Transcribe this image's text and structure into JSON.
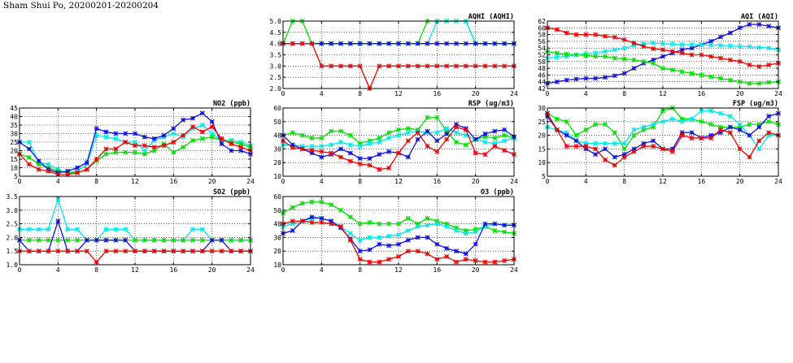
{
  "page": {
    "title": "Sham Shui Po, 20200201-20200204"
  },
  "colors": {
    "red": "#ee0000",
    "blue": "#1010dd",
    "green": "#00e000",
    "cyan": "#00e8e8",
    "axis": "#000000",
    "grid": "#000000"
  },
  "chart_data": [
    {
      "id": "aqhi",
      "type": "line",
      "title": "AQHI (AQHI)",
      "x_ticks": [
        "0",
        "4",
        "8",
        "12",
        "16",
        "20",
        "24"
      ],
      "xlim": [
        0,
        24
      ],
      "ylim": [
        2.0,
        5.0
      ],
      "y_ticks": [
        "2.0",
        "2.5",
        "3.0",
        "3.5",
        "4.0",
        "4.5",
        "5.0"
      ],
      "grid": true,
      "series": [
        {
          "color": "green",
          "values": [
            4,
            5,
            5,
            4,
            4,
            4,
            4,
            4,
            4,
            4,
            4,
            4,
            4,
            4,
            4,
            5,
            5,
            5,
            5,
            5,
            4,
            4,
            4,
            4,
            4
          ]
        },
        {
          "color": "cyan",
          "values": [
            4,
            4,
            4,
            4,
            4,
            4,
            4,
            4,
            4,
            4,
            4,
            4,
            4,
            4,
            4,
            4,
            5,
            5,
            5,
            5,
            4,
            4,
            4,
            4,
            4
          ]
        },
        {
          "color": "blue",
          "values": [
            4,
            4,
            4,
            4,
            4,
            4,
            4,
            4,
            4,
            4,
            4,
            4,
            4,
            4,
            4,
            4,
            4,
            4,
            4,
            4,
            4,
            4,
            4,
            4,
            4
          ]
        },
        {
          "color": "red",
          "values": [
            4,
            4,
            4,
            4,
            3,
            3,
            3,
            3,
            3,
            2,
            3,
            3,
            3,
            3,
            3,
            3,
            3,
            3,
            3,
            3,
            3,
            3,
            3,
            3,
            3
          ]
        }
      ]
    },
    {
      "id": "aqi",
      "type": "line",
      "title": "AQI (AQI)",
      "x_ticks": [
        "0",
        "4",
        "8",
        "12",
        "16",
        "20",
        "24"
      ],
      "xlim": [
        0,
        24
      ],
      "ylim": [
        42,
        62
      ],
      "y_ticks": [
        "42",
        "44",
        "46",
        "48",
        "50",
        "52",
        "54",
        "56",
        "58",
        "60",
        "62"
      ],
      "grid": true,
      "series": [
        {
          "color": "blue",
          "values": [
            43.5,
            44,
            44.5,
            44.8,
            45,
            45,
            45.3,
            45.8,
            46.5,
            48,
            49.5,
            50.5,
            51.5,
            52.5,
            53.5,
            54,
            55,
            56,
            57.3,
            58.5,
            60,
            61,
            61,
            60.5,
            60
          ]
        },
        {
          "color": "cyan",
          "values": [
            51,
            51.3,
            51.5,
            52,
            52.3,
            52.6,
            53,
            53.5,
            54,
            54.8,
            55.3,
            55.5,
            55.3,
            55.2,
            55,
            55,
            55,
            54.9,
            54.8,
            54.7,
            54.5,
            54.4,
            54.2,
            54,
            53.5
          ]
        },
        {
          "color": "red",
          "values": [
            60,
            59.5,
            58.5,
            58,
            58,
            58,
            57.5,
            57.2,
            56.5,
            55.5,
            54.5,
            53.8,
            53.5,
            53,
            52.5,
            52,
            52,
            51.5,
            51,
            50.5,
            50,
            49,
            48.5,
            49,
            49.5
          ]
        },
        {
          "color": "green",
          "values": [
            53,
            52.5,
            52.2,
            52,
            51.8,
            51.5,
            51.5,
            51,
            50.8,
            50.5,
            50,
            49.5,
            48,
            47.5,
            47,
            46.5,
            46,
            45.5,
            45,
            44.5,
            44,
            43.5,
            43.5,
            43.8,
            44
          ]
        }
      ]
    },
    {
      "id": "no2",
      "type": "line",
      "title": "NO2 (ppb)",
      "x_ticks": [
        "0",
        "4",
        "8",
        "12",
        "16",
        "20",
        "24"
      ],
      "xlim": [
        0,
        24
      ],
      "ylim": [
        5,
        45
      ],
      "y_ticks": [
        "5",
        "10",
        "15",
        "20",
        "25",
        "30",
        "35",
        "40",
        "45"
      ],
      "grid": true,
      "series": [
        {
          "color": "cyan",
          "values": [
            25,
            25,
            13,
            12,
            9,
            7,
            8,
            12,
            29,
            28,
            27,
            25,
            25,
            20,
            26,
            28,
            30,
            28,
            33,
            35,
            30,
            26,
            26,
            25,
            23
          ]
        },
        {
          "color": "green",
          "values": [
            18,
            16,
            12,
            10,
            8,
            7,
            7,
            9,
            14,
            18,
            19,
            19,
            19,
            18,
            20,
            24,
            19,
            22,
            26,
            27,
            28,
            26,
            25,
            24,
            22
          ]
        },
        {
          "color": "blue",
          "values": [
            25,
            21,
            14,
            9,
            7,
            8,
            10,
            13,
            33,
            31,
            30,
            30,
            30,
            28,
            27,
            29,
            33,
            38,
            39,
            42,
            37,
            24,
            20,
            20,
            18
          ]
        },
        {
          "color": "red",
          "values": [
            18,
            12,
            9,
            8,
            6,
            6,
            7,
            9,
            15,
            21,
            21,
            25,
            23,
            23,
            22,
            23,
            25,
            29,
            34,
            31,
            34,
            27,
            24,
            22,
            20
          ]
        }
      ]
    },
    {
      "id": "rsp",
      "type": "line",
      "title": "RSP (ug/m3)",
      "x_ticks": [
        "0",
        "4",
        "8",
        "12",
        "16",
        "20",
        "24"
      ],
      "xlim": [
        0,
        24
      ],
      "ylim": [
        10,
        60
      ],
      "y_ticks": [
        "10",
        "20",
        "30",
        "40",
        "50",
        "60"
      ],
      "grid": true,
      "series": [
        {
          "color": "green",
          "values": [
            40,
            42,
            40,
            38,
            38,
            43,
            43,
            40,
            34,
            36,
            38,
            42,
            44,
            45,
            44,
            53,
            53,
            43,
            35,
            33,
            37,
            39,
            38,
            40,
            38
          ]
        },
        {
          "color": "cyan",
          "values": [
            33,
            33,
            32,
            32,
            32,
            33,
            35,
            33,
            32,
            34,
            35,
            38,
            40,
            42,
            43,
            42,
            42,
            45,
            42,
            40,
            37,
            35,
            34,
            36,
            38
          ]
        },
        {
          "color": "blue",
          "values": [
            40,
            33,
            30,
            27,
            24,
            26,
            30,
            27,
            23,
            23,
            26,
            28,
            27,
            24,
            37,
            43,
            36,
            41,
            48,
            45,
            37,
            41,
            43,
            44,
            39
          ]
        },
        {
          "color": "red",
          "values": [
            36,
            31,
            30,
            29,
            28,
            27,
            24,
            21,
            19,
            18,
            15,
            16,
            27,
            36,
            42,
            32,
            28,
            37,
            46,
            44,
            27,
            26,
            32,
            29,
            26
          ]
        }
      ]
    },
    {
      "id": "fsp",
      "type": "line",
      "title": "FSP (ug/m3)",
      "x_ticks": [
        "0",
        "4",
        "8",
        "12",
        "16",
        "20",
        "24"
      ],
      "xlim": [
        0,
        24
      ],
      "ylim": [
        5,
        30
      ],
      "y_ticks": [
        "5",
        "10",
        "15",
        "20",
        "25",
        "30"
      ],
      "grid": true,
      "series": [
        {
          "color": "green",
          "values": [
            28,
            26,
            25,
            20,
            22,
            24,
            24,
            21,
            15,
            20,
            22,
            23,
            29,
            30,
            26,
            26,
            25,
            24,
            23,
            23,
            23,
            24,
            24,
            25,
            24
          ]
        },
        {
          "color": "cyan",
          "values": [
            23,
            22,
            21,
            18,
            17,
            17,
            17,
            17,
            17,
            22,
            23,
            24,
            25,
            26,
            25,
            26,
            29,
            29,
            28,
            27,
            24,
            20,
            15,
            20,
            20
          ]
        },
        {
          "color": "blue",
          "values": [
            27,
            22,
            20,
            18,
            15,
            13,
            15,
            12,
            13,
            15,
            17,
            18,
            15,
            15,
            21,
            21,
            19,
            20,
            21,
            23,
            22,
            20,
            23,
            27,
            28
          ]
        },
        {
          "color": "red",
          "values": [
            28,
            22,
            16,
            16,
            16,
            15,
            11,
            9,
            12,
            14,
            16,
            16,
            15,
            14,
            20,
            19,
            19,
            19,
            22,
            21,
            15,
            12,
            18,
            21,
            20
          ]
        }
      ]
    },
    {
      "id": "so2",
      "type": "line",
      "title": "SO2 (ppb)",
      "x_ticks": [
        "0",
        "4",
        "8",
        "12",
        "16",
        "20",
        "24"
      ],
      "xlim": [
        0,
        24
      ],
      "ylim": [
        1.0,
        3.5
      ],
      "y_ticks": [
        "1.0",
        "1.5",
        "2.0",
        "2.5",
        "3.0",
        "3.5"
      ],
      "grid": true,
      "series": [
        {
          "color": "cyan",
          "values": [
            2.3,
            2.3,
            2.3,
            2.3,
            3.4,
            2.3,
            2.3,
            1.9,
            1.9,
            2.3,
            2.3,
            2.3,
            1.9,
            1.9,
            1.9,
            1.9,
            1.9,
            1.9,
            2.3,
            2.3,
            1.9,
            1.9,
            1.9,
            1.9,
            1.9
          ]
        },
        {
          "color": "green",
          "values": [
            1.9,
            1.9,
            1.9,
            1.9,
            1.9,
            1.9,
            1.9,
            1.9,
            1.9,
            1.9,
            1.9,
            1.9,
            1.9,
            1.9,
            1.9,
            1.9,
            1.9,
            1.9,
            1.9,
            1.9,
            1.9,
            1.9,
            1.9,
            1.9,
            1.9
          ]
        },
        {
          "color": "blue",
          "values": [
            1.9,
            1.5,
            1.5,
            1.5,
            2.6,
            1.5,
            1.5,
            1.9,
            1.9,
            1.9,
            1.9,
            1.9,
            1.5,
            1.5,
            1.5,
            1.5,
            1.5,
            1.5,
            1.5,
            1.5,
            1.9,
            1.9,
            1.5,
            1.5,
            1.5
          ]
        },
        {
          "color": "red",
          "values": [
            1.5,
            1.5,
            1.5,
            1.5,
            1.5,
            1.5,
            1.5,
            1.5,
            1.1,
            1.5,
            1.5,
            1.5,
            1.5,
            1.5,
            1.5,
            1.5,
            1.5,
            1.5,
            1.5,
            1.5,
            1.5,
            1.5,
            1.5,
            1.5,
            1.5
          ]
        }
      ]
    },
    {
      "id": "o3",
      "type": "line",
      "title": "O3 (ppb)",
      "x_ticks": [
        "0",
        "4",
        "8",
        "12",
        "16",
        "20",
        "24"
      ],
      "xlim": [
        0,
        24
      ],
      "ylim": [
        10,
        60
      ],
      "y_ticks": [
        "10",
        "20",
        "30",
        "40",
        "50",
        "60"
      ],
      "grid": true,
      "series": [
        {
          "color": "green",
          "values": [
            48,
            52,
            55,
            56,
            56,
            54,
            50,
            45,
            40,
            41,
            40,
            40,
            40,
            44,
            40,
            44,
            42,
            40,
            37,
            35,
            36,
            38,
            35,
            34,
            33
          ]
        },
        {
          "color": "cyan",
          "values": [
            38,
            40,
            42,
            44,
            44,
            42,
            38,
            33,
            28,
            30,
            30,
            31,
            32,
            35,
            38,
            39,
            40,
            38,
            35,
            33,
            34,
            38,
            40,
            39,
            39
          ]
        },
        {
          "color": "blue",
          "values": [
            33,
            35,
            42,
            45,
            44,
            42,
            37,
            29,
            20,
            21,
            25,
            24,
            25,
            28,
            30,
            30,
            25,
            22,
            20,
            18,
            25,
            40,
            40,
            39,
            39
          ]
        },
        {
          "color": "red",
          "values": [
            40,
            42,
            42,
            41,
            41,
            40,
            38,
            28,
            14,
            12,
            12,
            14,
            16,
            20,
            20,
            18,
            14,
            16,
            12,
            14,
            13,
            12,
            12,
            13,
            14
          ]
        }
      ]
    }
  ]
}
